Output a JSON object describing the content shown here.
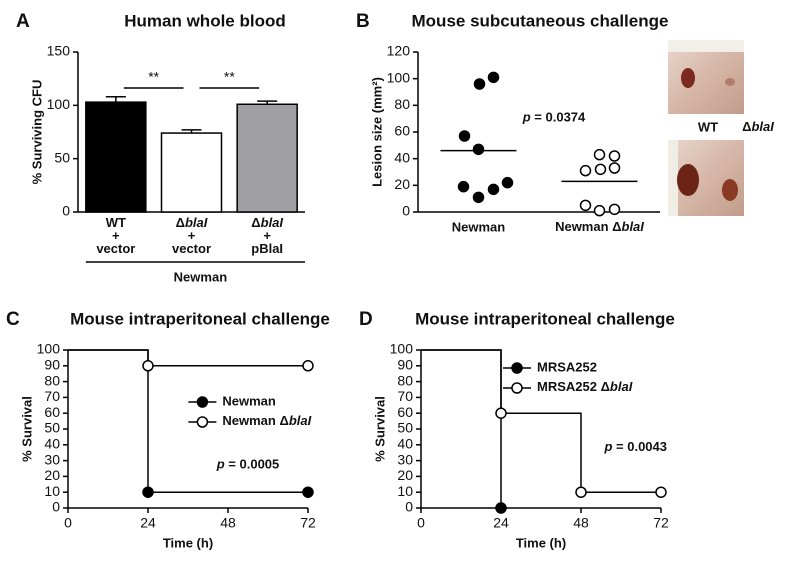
{
  "chart_data": [
    {
      "type": "bar",
      "panel": "A",
      "title": "Human whole blood",
      "ylabel": "% Surviving CFU",
      "categories": [
        "WT + vector",
        "ΔblaI + vector",
        "ΔblaI + pBlaI"
      ],
      "group_label": "Newman",
      "values": [
        103,
        74,
        101
      ],
      "errors": [
        5,
        3,
        3
      ],
      "colors": [
        "#000000",
        "#ffffff",
        "#a0a0a4"
      ],
      "ylim": [
        0,
        150
      ],
      "yticks": [
        0,
        50,
        100,
        150
      ],
      "significance": [
        {
          "from": 0,
          "to": 1,
          "label": "**"
        },
        {
          "from": 1,
          "to": 2,
          "label": "**"
        }
      ]
    },
    {
      "type": "scatter",
      "panel": "B",
      "title": "Mouse subcutaneous challenge",
      "ylabel": "Lesion size (mm²)",
      "categories": [
        "Newman",
        "Newman ΔblaI"
      ],
      "groups": [
        {
          "values": [
            101,
            96,
            57,
            47,
            22,
            19,
            17,
            11
          ],
          "mean": 46,
          "fill": "#000000"
        },
        {
          "values": [
            43,
            42,
            33,
            32,
            31,
            5,
            2,
            1
          ],
          "mean": 23,
          "fill": "#ffffff"
        }
      ],
      "ylim": [
        0,
        120
      ],
      "yticks": [
        0,
        20,
        40,
        60,
        80,
        100,
        120
      ],
      "annotation": "p = 0.0374",
      "image_labels": [
        "WT",
        "ΔblaI"
      ]
    },
    {
      "type": "line",
      "panel": "C",
      "title": "Mouse intraperitoneal challenge",
      "xlabel": "Time (h)",
      "ylabel": "% Survival",
      "x": [
        0,
        24,
        72
      ],
      "xlim": [
        0,
        72
      ],
      "xticks": [
        0,
        24,
        48,
        72
      ],
      "ylim": [
        0,
        100
      ],
      "yticks": [
        0,
        10,
        20,
        30,
        40,
        50,
        60,
        70,
        80,
        90,
        100
      ],
      "legend": "center",
      "annotation": "p = 0.0005",
      "series": [
        {
          "name": "Newman",
          "color": "#000000",
          "values": [
            100,
            10,
            10
          ]
        },
        {
          "name": "Newman ΔblaI",
          "color": "#ffffff",
          "values": [
            100,
            90,
            90
          ]
        }
      ]
    },
    {
      "type": "line",
      "panel": "D",
      "title": "Mouse intraperitoneal challenge",
      "xlabel": "Time (h)",
      "ylabel": "% Survival",
      "x": [
        0,
        24,
        48,
        72
      ],
      "xlim": [
        0,
        72
      ],
      "xticks": [
        0,
        24,
        48,
        72
      ],
      "ylim": [
        0,
        100
      ],
      "yticks": [
        0,
        10,
        20,
        30,
        40,
        50,
        60,
        70,
        80,
        90,
        100
      ],
      "legend": "top",
      "annotation": "p = 0.0043",
      "series": [
        {
          "name": "MRSA252",
          "color": "#000000",
          "values": [
            100,
            0,
            null,
            null
          ]
        },
        {
          "name": "MRSA252 ΔblaI",
          "color": "#ffffff",
          "values": [
            100,
            60,
            10,
            10
          ]
        }
      ]
    }
  ]
}
